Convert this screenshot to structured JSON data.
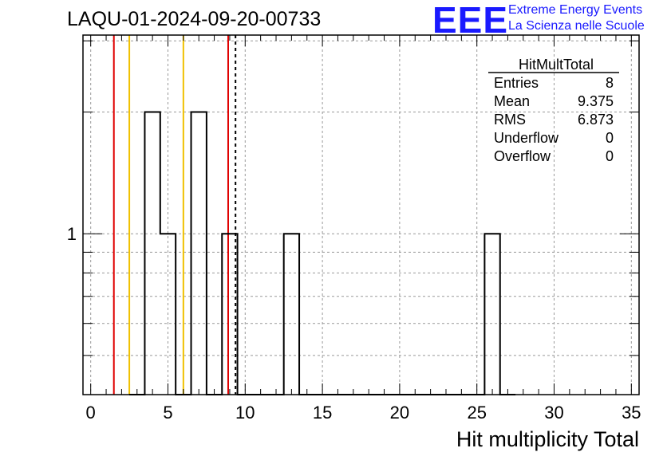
{
  "header": {
    "title": "LAQU-01-2024-09-20-00733",
    "logo_text": "EEE",
    "logo_line1": "Extreme Energy Events",
    "logo_line2": "La Scienza nelle Scuole"
  },
  "colors": {
    "histogram": "#000000",
    "red_lines": "#e00000",
    "yellow_lines": "#f0c000",
    "mean_line": "#000000",
    "logo": "#1a1aff",
    "grid": "#999999"
  },
  "stats_box": {
    "name": "HitMultTotal",
    "rows": [
      {
        "label": "Entries",
        "value": "8"
      },
      {
        "label": "Mean",
        "value": "9.375"
      },
      {
        "label": "RMS",
        "value": "6.873"
      },
      {
        "label": "Underflow",
        "value": "0"
      },
      {
        "label": "Overflow",
        "value": "0"
      }
    ]
  },
  "chart_data": {
    "type": "bar",
    "histogram_style": "step",
    "xlabel": "Hit multiplicity Total",
    "ylabel": "",
    "xlim": [
      -0.5,
      35.5
    ],
    "ylim": [
      0.4,
      3.1
    ],
    "y_scale": "log",
    "grid": true,
    "bin_width": 1,
    "x_ticks": [
      0,
      5,
      10,
      15,
      20,
      25,
      30,
      35
    ],
    "y_tick_labels": [
      {
        "value": 1,
        "label": "1"
      }
    ],
    "bins": [
      {
        "x": 4,
        "count": 2
      },
      {
        "x": 5,
        "count": 1
      },
      {
        "x": 7,
        "count": 2
      },
      {
        "x": 9,
        "count": 1
      },
      {
        "x": 13,
        "count": 1
      },
      {
        "x": 26,
        "count": 1
      }
    ],
    "vertical_lines": [
      {
        "x": 1.5,
        "color": "red"
      },
      {
        "x": 2.5,
        "color": "yellow"
      },
      {
        "x": 6.0,
        "color": "yellow"
      },
      {
        "x": 8.9,
        "color": "red"
      },
      {
        "x": 9.375,
        "color": "black-dashed"
      }
    ]
  }
}
